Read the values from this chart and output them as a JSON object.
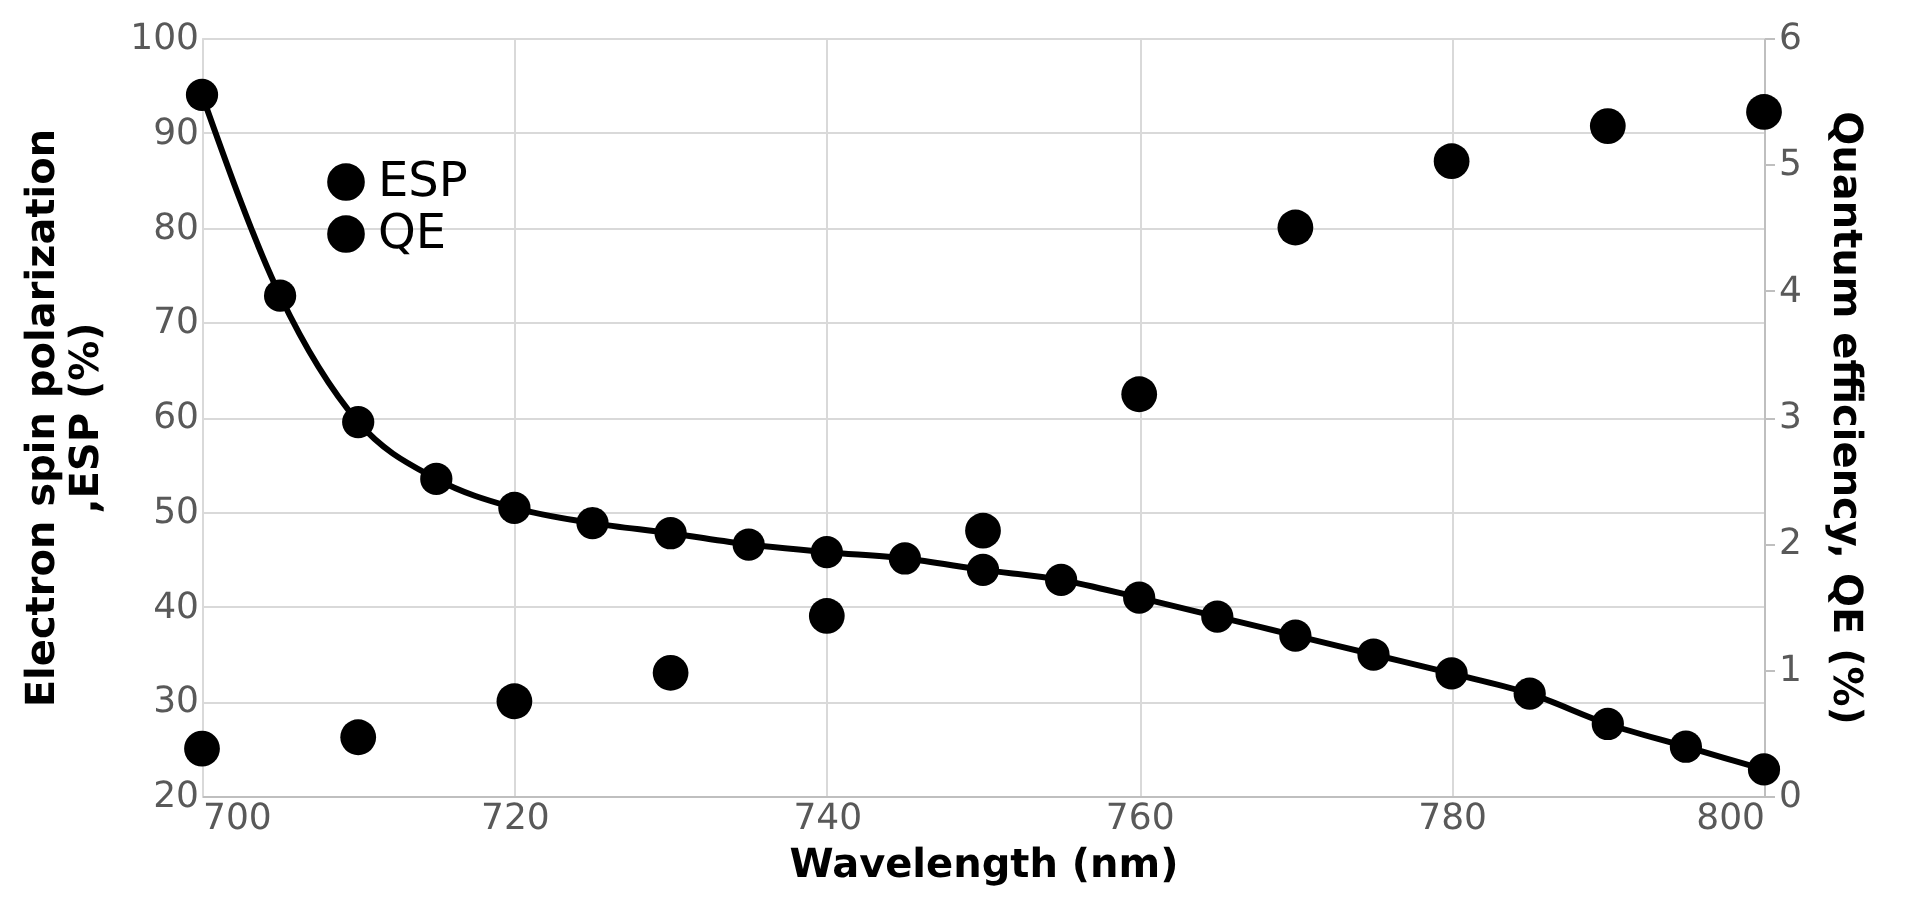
{
  "chart_data": {
    "type": "scatter",
    "xlabel": "Wavelength (nm)",
    "ylabel": "Electron spin polarization\n,ESP (%)",
    "y2label": "Quantum efficiency, QE (%)",
    "xlim": [
      700,
      800
    ],
    "xticks": [
      700,
      720,
      740,
      760,
      780,
      800
    ],
    "ylim": [
      20,
      100
    ],
    "yticks": [
      20,
      30,
      40,
      50,
      60,
      70,
      80,
      90,
      100
    ],
    "y2lim": [
      0,
      6
    ],
    "y2ticks": [
      0,
      1,
      2,
      3,
      4,
      5,
      6
    ],
    "grid": true,
    "legend": "top left",
    "marker": "circle",
    "series": [
      {
        "name": "ESP",
        "color": "#000000",
        "x": [
          700,
          710,
          720,
          730,
          740,
          750,
          760,
          770,
          780,
          790,
          800
        ],
        "values": [
          25,
          26.2,
          30,
          33,
          39,
          48,
          62.4,
          80,
          87,
          90.7,
          92.2
        ]
      },
      {
        "name": "QE",
        "type": "line",
        "axis": "y2",
        "color": "#000000",
        "line_style": "solid",
        "x": [
          700,
          705,
          710,
          715,
          720,
          725,
          730,
          735,
          740,
          745,
          750,
          755,
          760,
          765,
          770,
          775,
          780,
          785,
          790,
          795,
          800
        ],
        "values": [
          5.55,
          3.96,
          2.96,
          2.51,
          2.28,
          2.16,
          2.08,
          1.99,
          1.93,
          1.88,
          1.79,
          1.71,
          1.57,
          1.42,
          1.27,
          1.12,
          0.97,
          0.81,
          0.57,
          0.39,
          0.21
        ]
      }
    ]
  }
}
